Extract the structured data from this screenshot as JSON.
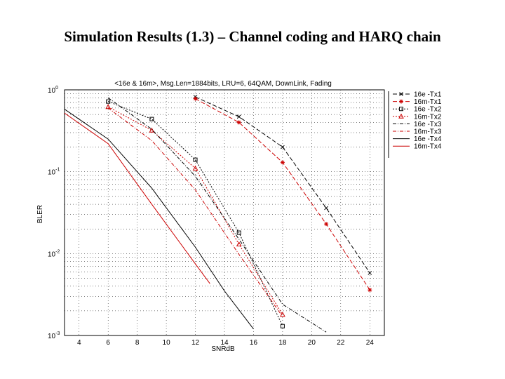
{
  "slide": {
    "title": "Simulation Results (1.3) – Channel coding and HARQ chain"
  },
  "chart_data": {
    "type": "line",
    "title": "<16e & 16m>, Msg.Len=1884bits, LRU=6, 64QAM, DownLink, Fading",
    "xlabel": "SNRdB",
    "ylabel": "BLER",
    "xlim": [
      3,
      25
    ],
    "ylim": [
      0.001,
      1
    ],
    "yscale": "log",
    "xticks": [
      "4",
      "6",
      "8",
      "10",
      "12",
      "14",
      "16",
      "18",
      "20",
      "22",
      "24"
    ],
    "yticks": [
      "10^0",
      "10^-1",
      "10^-2",
      "10^-3"
    ],
    "grid": true,
    "legend_position": "right",
    "series": [
      {
        "name": "16e -Tx1",
        "color": "#000000",
        "dash": "6,3",
        "marker": "x",
        "points": [
          [
            12,
            0.82
          ],
          [
            15,
            0.47
          ],
          [
            18,
            0.2
          ],
          [
            21,
            0.036
          ],
          [
            24,
            0.0058
          ]
        ]
      },
      {
        "name": "16m-Tx1",
        "color": "#cc0000",
        "dash": "6,3",
        "marker": "star",
        "points": [
          [
            12,
            0.78
          ],
          [
            15,
            0.4
          ],
          [
            18,
            0.13
          ],
          [
            21,
            0.023
          ],
          [
            24,
            0.0036
          ]
        ]
      },
      {
        "name": "16e -Tx2",
        "color": "#000000",
        "dash": "2,2",
        "marker": "square",
        "points": [
          [
            6,
            0.72
          ],
          [
            9,
            0.44
          ],
          [
            12,
            0.14
          ],
          [
            15,
            0.018
          ],
          [
            18,
            0.0013
          ]
        ]
      },
      {
        "name": "16m-Tx2",
        "color": "#cc0000",
        "dash": "2,2",
        "marker": "triangle",
        "points": [
          [
            6,
            0.62
          ],
          [
            9,
            0.32
          ],
          [
            12,
            0.11
          ],
          [
            15,
            0.013
          ],
          [
            18,
            0.0018
          ]
        ]
      },
      {
        "name": "16e -Tx3",
        "color": "#000000",
        "dash": "5,2,1,2",
        "marker": "none",
        "points": [
          [
            6,
            0.8
          ],
          [
            9,
            0.33
          ],
          [
            12,
            0.088
          ],
          [
            15,
            0.015
          ],
          [
            18,
            0.0024
          ],
          [
            21,
            0.0011
          ]
        ]
      },
      {
        "name": "16m-Tx3",
        "color": "#cc0000",
        "dash": "5,2,1,2",
        "marker": "none",
        "points": [
          [
            6,
            0.6
          ],
          [
            9,
            0.24
          ],
          [
            12,
            0.06
          ],
          [
            15,
            0.0098
          ],
          [
            18,
            0.0017
          ]
        ]
      },
      {
        "name": "16e -Tx4",
        "color": "#000000",
        "dash": "none",
        "marker": "none",
        "points": [
          [
            3,
            0.58
          ],
          [
            6,
            0.25
          ],
          [
            9,
            0.063
          ],
          [
            12,
            0.012
          ],
          [
            14,
            0.0035
          ],
          [
            16,
            0.0012
          ]
        ]
      },
      {
        "name": "16m-Tx4",
        "color": "#cc0000",
        "dash": "none",
        "marker": "none",
        "points": [
          [
            3,
            0.52
          ],
          [
            6,
            0.22
          ],
          [
            9,
            0.04
          ],
          [
            12,
            0.0075
          ],
          [
            13,
            0.0043
          ]
        ]
      }
    ]
  }
}
